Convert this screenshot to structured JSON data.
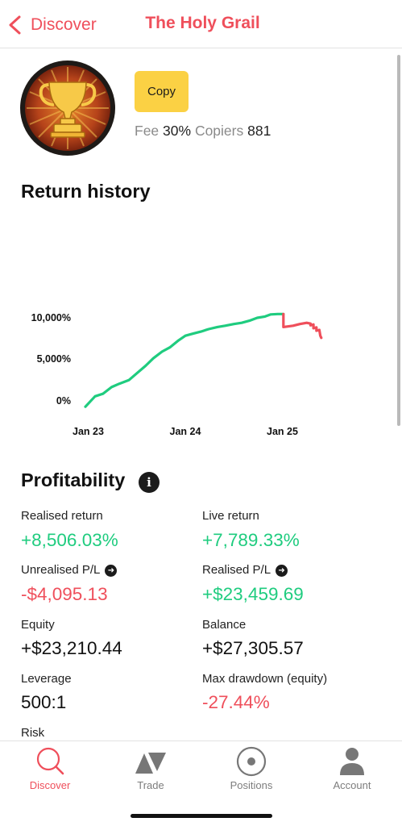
{
  "nav": {
    "back_label": "Discover",
    "title": "The Holy Grail"
  },
  "strategy": {
    "copy_label": "Copy",
    "fee_label": "Fee",
    "fee_value": "30%",
    "copiers_label": "Copiers",
    "copiers_value": "881"
  },
  "return_history": {
    "title": "Return history"
  },
  "chart_data": {
    "type": "line",
    "title": "Return history",
    "xlabel": "",
    "ylabel": "",
    "y_ticks": [
      "10,000%",
      "5,000%",
      "0%"
    ],
    "x_ticks": [
      "Jan 23",
      "Jan 24",
      "Jan 25"
    ],
    "ylim": [
      -700,
      10500
    ],
    "grid": false,
    "legend": "none",
    "series": [
      {
        "color": "#1fcc7f",
        "x": [
          2022.95,
          2023.05,
          2023.13,
          2023.22,
          2023.3,
          2023.4,
          2023.48,
          2023.57,
          2023.65,
          2023.74,
          2023.82,
          2023.91,
          2023.98,
          2024.06,
          2024.14,
          2024.22,
          2024.31,
          2024.39,
          2024.48,
          2024.56,
          2024.64,
          2024.72,
          2024.8,
          2024.86,
          2024.93,
          2024.99
        ],
        "y": [
          -600,
          650,
          950,
          1750,
          2150,
          2600,
          3400,
          4300,
          5200,
          6000,
          6500,
          7350,
          7900,
          8150,
          8400,
          8700,
          8950,
          9100,
          9300,
          9450,
          9700,
          10050,
          10200,
          10450,
          10500,
          10500
        ]
      },
      {
        "color": "#ef4f5b",
        "x": [
          2024.99,
          2024.99,
          2025.09,
          2025.16,
          2025.23,
          2025.27,
          2025.27,
          2025.3,
          2025.3,
          2025.33,
          2025.33,
          2025.36,
          2025.37,
          2025.38
        ],
        "y": [
          10500,
          8950,
          9100,
          9300,
          9450,
          9350,
          9150,
          9250,
          8800,
          8900,
          8500,
          8600,
          7900,
          7650
        ]
      }
    ]
  },
  "profitability": {
    "title": "Profitability",
    "info_icon": "info-icon",
    "realised_return_label": "Realised return",
    "realised_return_value": "+8,506.03%",
    "live_return_label": "Live return",
    "live_return_value": "+7,789.33%",
    "unrealised_pl_label": "Unrealised P/L",
    "unrealised_pl_value": "-$4,095.13",
    "realised_pl_label": "Realised P/L",
    "realised_pl_value": "+$23,459.69",
    "equity_label": "Equity",
    "equity_value": "+$23,210.44",
    "balance_label": "Balance",
    "balance_value": "+$27,305.57",
    "leverage_label": "Leverage",
    "leverage_value": "500:1",
    "max_drawdown_label": "Max drawdown (equity)",
    "max_drawdown_value": "-27.44%",
    "risk_label": "Risk"
  },
  "colors": {
    "accent": "#ef4f5b",
    "positive": "#1fcc7f",
    "negative": "#ef4f5b",
    "copy_button": "#fbd144"
  },
  "tabs": [
    {
      "label": "Discover",
      "icon": "search-icon",
      "active": true
    },
    {
      "label": "Trade",
      "icon": "trade-icon",
      "active": false
    },
    {
      "label": "Positions",
      "icon": "positions-icon",
      "active": false
    },
    {
      "label": "Account",
      "icon": "account-icon",
      "active": false
    }
  ]
}
